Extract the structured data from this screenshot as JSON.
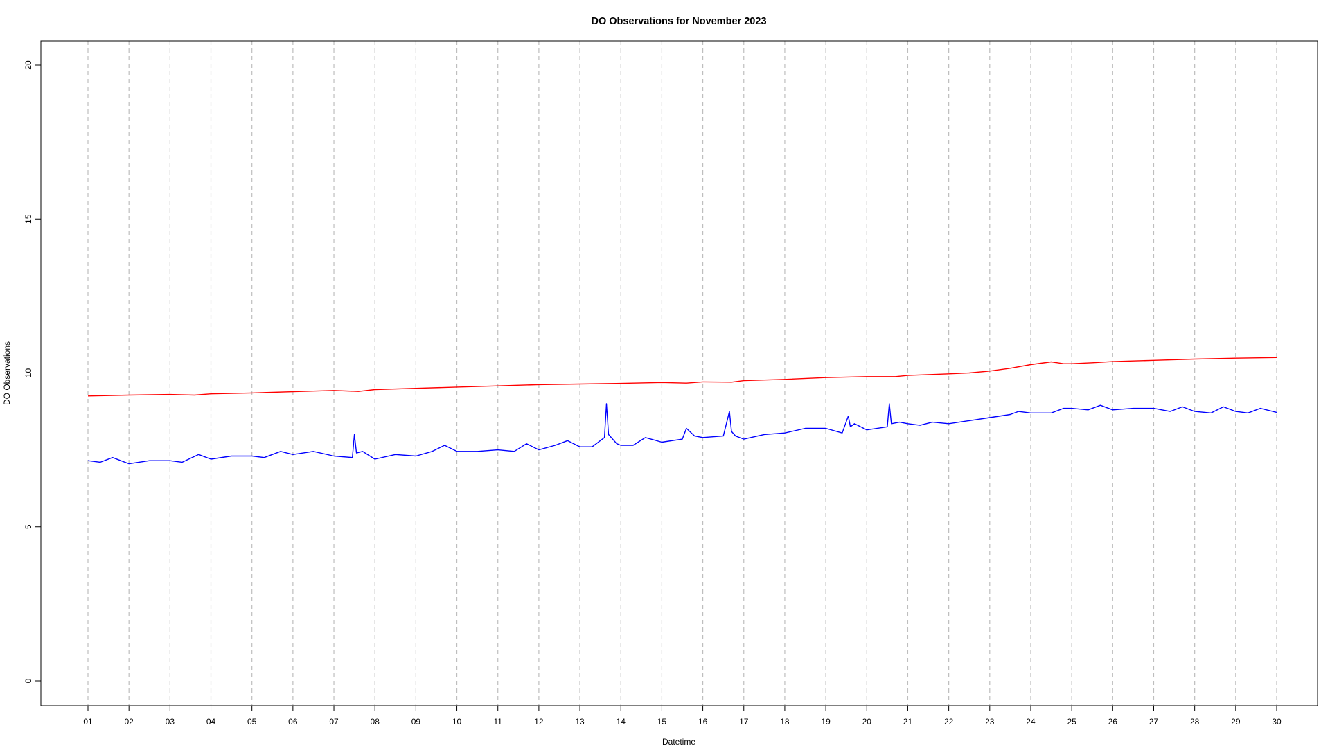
{
  "chart_data": {
    "type": "line",
    "title": "DO Observations for November 2023",
    "xlabel": "Datetime",
    "ylabel": "DO Observations",
    "ylim": [
      0,
      20
    ],
    "yticks": [
      "0",
      "5",
      "10",
      "15",
      "20"
    ],
    "xlim": [
      1,
      30
    ],
    "xticks": [
      "01",
      "02",
      "03",
      "04",
      "05",
      "06",
      "07",
      "08",
      "09",
      "10",
      "11",
      "12",
      "13",
      "14",
      "15",
      "16",
      "17",
      "18",
      "19",
      "20",
      "21",
      "22",
      "23",
      "24",
      "25",
      "26",
      "27",
      "28",
      "29",
      "30"
    ],
    "grid": "vertical dashed lines at each day",
    "legend": "none",
    "series": [
      {
        "color": "#ff0000",
        "x": [
          1.0,
          2.0,
          3.0,
          3.6,
          4.0,
          5.0,
          6.0,
          7.0,
          7.6,
          8.0,
          9.0,
          10.0,
          11.0,
          12.0,
          13.0,
          14.0,
          15.0,
          15.6,
          16.0,
          16.7,
          17.0,
          18.0,
          19.0,
          20.0,
          20.7,
          21.0,
          22.0,
          22.5,
          23.0,
          23.5,
          24.0,
          24.5,
          24.8,
          25.0,
          25.5,
          26.0,
          27.0,
          28.0,
          29.0,
          30.0
        ],
        "y": [
          9.25,
          9.28,
          9.3,
          9.28,
          9.32,
          9.35,
          9.39,
          9.43,
          9.4,
          9.46,
          9.5,
          9.54,
          9.58,
          9.62,
          9.64,
          9.66,
          9.69,
          9.67,
          9.71,
          9.7,
          9.75,
          9.79,
          9.85,
          9.88,
          9.88,
          9.92,
          9.97,
          10.0,
          10.06,
          10.15,
          10.27,
          10.36,
          10.3,
          10.3,
          10.33,
          10.37,
          10.41,
          10.45,
          10.48,
          10.5
        ]
      },
      {
        "color": "#0000ff",
        "x": [
          1.0,
          1.3,
          1.6,
          2.0,
          2.5,
          3.0,
          3.3,
          3.7,
          4.0,
          4.5,
          5.0,
          5.3,
          5.7,
          6.0,
          6.5,
          7.0,
          7.45,
          7.5,
          7.55,
          7.7,
          8.0,
          8.5,
          9.0,
          9.4,
          9.7,
          10.0,
          10.5,
          11.0,
          11.4,
          11.7,
          12.0,
          12.4,
          12.7,
          13.0,
          13.3,
          13.6,
          13.65,
          13.7,
          13.9,
          14.0,
          14.3,
          14.6,
          15.0,
          15.5,
          15.6,
          15.8,
          16.0,
          16.5,
          16.65,
          16.7,
          16.8,
          17.0,
          17.5,
          18.0,
          18.5,
          19.0,
          19.4,
          19.55,
          19.6,
          19.7,
          20.0,
          20.5,
          20.55,
          20.6,
          20.8,
          21.0,
          21.3,
          21.6,
          22.0,
          22.5,
          23.0,
          23.5,
          23.7,
          24.0,
          24.5,
          24.8,
          25.0,
          25.4,
          25.7,
          26.0,
          26.5,
          27.0,
          27.4,
          27.7,
          28.0,
          28.4,
          28.7,
          29.0,
          29.3,
          29.6,
          30.0
        ],
        "y": [
          7.15,
          7.1,
          7.25,
          7.05,
          7.15,
          7.15,
          7.1,
          7.35,
          7.2,
          7.3,
          7.3,
          7.25,
          7.45,
          7.35,
          7.45,
          7.3,
          7.25,
          8.0,
          7.4,
          7.45,
          7.2,
          7.35,
          7.3,
          7.45,
          7.65,
          7.45,
          7.45,
          7.5,
          7.45,
          7.7,
          7.5,
          7.65,
          7.8,
          7.6,
          7.6,
          7.9,
          9.0,
          8.0,
          7.7,
          7.65,
          7.65,
          7.9,
          7.75,
          7.85,
          8.2,
          7.95,
          7.9,
          7.95,
          8.75,
          8.1,
          7.95,
          7.85,
          8.0,
          8.05,
          8.2,
          8.2,
          8.05,
          8.6,
          8.25,
          8.35,
          8.15,
          8.25,
          9.0,
          8.35,
          8.4,
          8.35,
          8.3,
          8.4,
          8.35,
          8.45,
          8.55,
          8.65,
          8.75,
          8.7,
          8.7,
          8.85,
          8.85,
          8.8,
          8.95,
          8.8,
          8.85,
          8.85,
          8.75,
          8.9,
          8.75,
          8.7,
          8.9,
          8.75,
          8.7,
          8.85,
          8.72
        ]
      }
    ]
  }
}
